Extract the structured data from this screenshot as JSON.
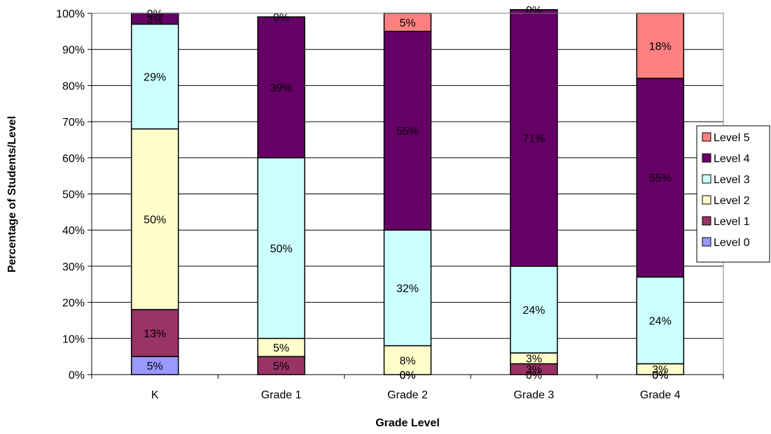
{
  "chart_data": {
    "type": "bar",
    "stacked": true,
    "percent_stacked": true,
    "xlabel": "Grade Level",
    "ylabel": "Percentage of Students/Level",
    "categories": [
      "K",
      "Grade 1",
      "Grade 2",
      "Grade 3",
      "Grade 4"
    ],
    "ylim": [
      0,
      100
    ],
    "yticks": [
      "0%",
      "10%",
      "20%",
      "30%",
      "40%",
      "50%",
      "60%",
      "70%",
      "80%",
      "90%",
      "100%"
    ],
    "grid": true,
    "legend_position": "right",
    "series": [
      {
        "name": "Level 0",
        "color": "#9999FF",
        "values": [
          5,
          0,
          0,
          0,
          0
        ],
        "labels": [
          "5%",
          "",
          "0%",
          "0%",
          "0%"
        ]
      },
      {
        "name": "Level 1",
        "color": "#993366",
        "values": [
          13,
          5,
          0,
          3,
          0
        ],
        "labels": [
          "13%",
          "5%",
          "0%",
          "3%",
          "0%"
        ]
      },
      {
        "name": "Level 2",
        "color": "#FFFFCC",
        "values": [
          50,
          5,
          8,
          3,
          3
        ],
        "labels": [
          "50%",
          "5%",
          "8%",
          "3%",
          "3%"
        ]
      },
      {
        "name": "Level 3",
        "color": "#CCFFFF",
        "values": [
          29,
          50,
          32,
          24,
          24
        ],
        "labels": [
          "29%",
          "50%",
          "32%",
          "24%",
          "24%"
        ]
      },
      {
        "name": "Level 4",
        "color": "#660066",
        "values": [
          3,
          39,
          55,
          71,
          55
        ],
        "labels": [
          "3%",
          "39%",
          "55%",
          "71%",
          "55%"
        ]
      },
      {
        "name": "Level 5",
        "color": "#FF8080",
        "values": [
          0,
          0,
          5,
          0,
          18
        ],
        "labels": [
          "0%",
          "0%",
          "5%",
          "0%",
          "18%"
        ]
      }
    ]
  }
}
